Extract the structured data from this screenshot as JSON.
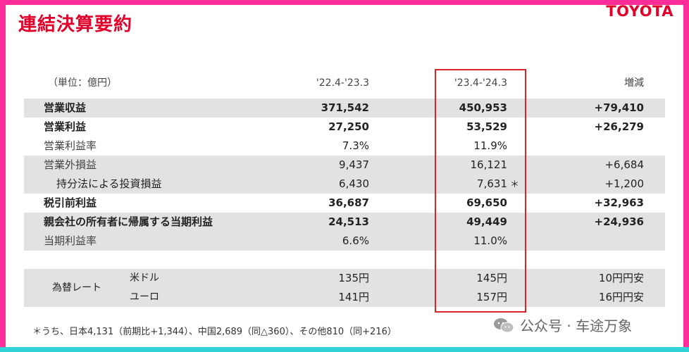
{
  "title": "連結決算要約",
  "brand": "TOYOTA",
  "header": {
    "unit": "（単位：億円）",
    "col1": "'22.4-'23.3",
    "col2": "'23.4-'24.3",
    "col3": "増減"
  },
  "rows": [
    {
      "label": "営業収益",
      "v1": "371,542",
      "v2": "450,953",
      "v3": "+79,410"
    },
    {
      "label": "営業利益",
      "v1": "27,250",
      "v2": "53,529",
      "v3": "+26,279"
    },
    {
      "label": "営業利益率",
      "v1": "7.3%",
      "v2": "11.9%",
      "v3": ""
    },
    {
      "label": "営業外損益",
      "v1": "9,437",
      "v2": "16,121",
      "v3": "+6,684"
    },
    {
      "label": "持分法による投資損益",
      "v1": "6,430",
      "v2": "7,631",
      "v3": "+1,200",
      "mark": "＊"
    },
    {
      "label": "税引前利益",
      "v1": "36,687",
      "v2": "69,650",
      "v3": "+32,963"
    },
    {
      "label": "親会社の所有者に帰属する当期利益",
      "v1": "24,513",
      "v2": "49,449",
      "v3": "+24,936"
    },
    {
      "label": "当期利益率",
      "v1": "6.6%",
      "v2": "11.0%",
      "v3": ""
    }
  ],
  "fx": {
    "label": "為替レート",
    "usd": {
      "label": "米ドル",
      "v1": "135円",
      "v2": "145円",
      "v3": "10円円安"
    },
    "eur": {
      "label": "ユーロ",
      "v1": "141円",
      "v2": "157円",
      "v3": "16円円安"
    }
  },
  "footnote": "＊うち、日本4,131（前期比+1,344）、中国2,689（同△360）、その他810（同+216）",
  "watermark": "公众号 · 车途万象",
  "colors": {
    "accent": "#e0002a",
    "frame": "#ff2d9a",
    "frame_bottom": "#31d3d8",
    "shade": "#e2e2e2",
    "highlight": "#d9262c"
  }
}
